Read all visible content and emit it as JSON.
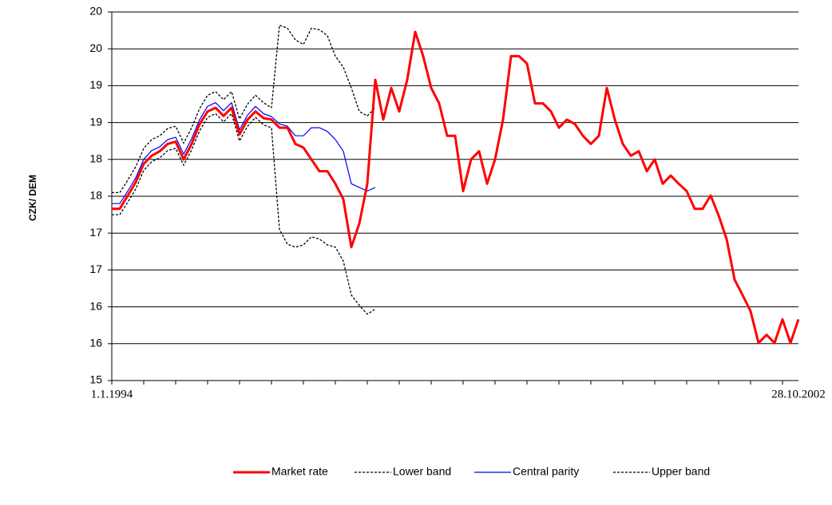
{
  "chart_data": {
    "type": "line",
    "y_label": "CZK/ DEM",
    "grid": true,
    "legend": "bottom",
    "categories": [
      "1.1.1994",
      null,
      null,
      null,
      null,
      null,
      null,
      null,
      null,
      null,
      null,
      null,
      null,
      null,
      null,
      null,
      null,
      null,
      null,
      null,
      null,
      null,
      null,
      null,
      null,
      null,
      null,
      null,
      null,
      null,
      null,
      null,
      null,
      null,
      null,
      null,
      null,
      null,
      null,
      null,
      null,
      null,
      null,
      null,
      null,
      null,
      null,
      null,
      null,
      null,
      null,
      null,
      null,
      null,
      null,
      null,
      null,
      null,
      null,
      null,
      null,
      null,
      null,
      null,
      null,
      null,
      null,
      null,
      null,
      null,
      null,
      null,
      null,
      null,
      null,
      null,
      null,
      null,
      null,
      null,
      null,
      null,
      null,
      null,
      null,
      null,
      "28.10.2002"
    ],
    "ylim": [
      15,
      20
    ],
    "yticks": [
      15,
      {
        "value": 15.5,
        "label": "16"
      },
      16,
      {
        "value": 16.5,
        "label": "17"
      },
      17,
      {
        "value": 17.5,
        "label": "18"
      },
      18,
      {
        "value": 18.5,
        "label": "19"
      },
      19,
      {
        "value": 19.5,
        "label": "20"
      },
      20
    ],
    "series": [
      {
        "name": "Market rate",
        "color": "#ff0000",
        "dashed": false,
        "values": [
          17.33,
          17.33,
          17.51,
          17.69,
          17.94,
          18.05,
          18.11,
          18.21,
          18.24,
          18.0,
          18.21,
          18.48,
          18.65,
          18.7,
          18.59,
          18.7,
          18.34,
          18.54,
          18.65,
          18.56,
          18.54,
          18.43,
          18.43,
          18.21,
          18.16,
          18.0,
          17.84,
          17.84,
          17.67,
          17.46,
          16.81,
          17.13,
          17.67,
          19.08,
          18.54,
          18.97,
          18.65,
          19.08,
          19.73,
          19.4,
          18.97,
          18.76,
          18.32,
          18.32,
          17.57,
          18.0,
          18.11,
          17.67,
          18.0,
          18.54,
          19.4,
          19.4,
          19.3,
          18.76,
          18.76,
          18.65,
          18.43,
          18.54,
          18.48,
          18.32,
          18.21,
          18.32,
          18.97,
          18.54,
          18.21,
          18.05,
          18.11,
          17.84,
          18.0,
          17.67,
          17.78,
          17.67,
          17.57,
          17.33,
          17.33,
          17.51,
          17.24,
          16.92,
          16.37,
          16.16,
          15.94,
          15.51,
          15.62,
          15.51,
          15.83,
          15.51,
          15.83
        ]
      },
      {
        "name": "Lower band",
        "color": "#000000",
        "dashed": true,
        "values": [
          17.25,
          17.25,
          17.42,
          17.6,
          17.85,
          17.97,
          18.02,
          18.12,
          18.15,
          17.92,
          18.13,
          18.39,
          18.57,
          18.62,
          18.51,
          18.62,
          18.25,
          18.45,
          18.57,
          18.47,
          18.43,
          17.05,
          16.85,
          16.81,
          16.84,
          16.95,
          16.92,
          16.84,
          16.81,
          16.62,
          16.16,
          16.02,
          15.9,
          15.97,
          null,
          null,
          null,
          null,
          null,
          null,
          null,
          null,
          null,
          null,
          null,
          null,
          null,
          null,
          null,
          null,
          null,
          null,
          null,
          null,
          null,
          null,
          null,
          null,
          null,
          null,
          null,
          null,
          null,
          null,
          null,
          null,
          null,
          null,
          null,
          null,
          null,
          null,
          null,
          null,
          null,
          null,
          null,
          null,
          null,
          null,
          null,
          null,
          null,
          null,
          null,
          null,
          null
        ]
      },
      {
        "name": "Central parity",
        "color": "#0000ff",
        "dashed": false,
        "values": [
          17.4,
          17.4,
          17.57,
          17.75,
          18.0,
          18.12,
          18.17,
          18.27,
          18.3,
          18.07,
          18.28,
          18.54,
          18.72,
          18.77,
          18.66,
          18.77,
          18.4,
          18.6,
          18.72,
          18.62,
          18.58,
          18.48,
          18.45,
          18.32,
          18.32,
          18.43,
          18.43,
          18.38,
          18.27,
          18.11,
          17.67,
          17.62,
          17.57,
          17.62,
          null,
          null,
          null,
          null,
          null,
          null,
          null,
          null,
          null,
          null,
          null,
          null,
          null,
          null,
          null,
          null,
          null,
          null,
          null,
          null,
          null,
          null,
          null,
          null,
          null,
          null,
          null,
          null,
          null,
          null,
          null,
          null,
          null,
          null,
          null,
          null,
          null,
          null,
          null,
          null,
          null,
          null,
          null,
          null,
          null,
          null,
          null,
          null,
          null,
          null,
          null,
          null,
          null
        ]
      },
      {
        "name": "Upper band",
        "color": "#000000",
        "dashed": true,
        "values": [
          17.55,
          17.55,
          17.72,
          17.9,
          18.15,
          18.27,
          18.32,
          18.42,
          18.45,
          18.22,
          18.43,
          18.69,
          18.87,
          18.92,
          18.81,
          18.92,
          18.55,
          18.75,
          18.87,
          18.77,
          18.7,
          19.82,
          19.78,
          19.62,
          19.56,
          19.78,
          19.76,
          19.68,
          19.4,
          19.25,
          18.97,
          18.65,
          18.59,
          18.7,
          null,
          null,
          null,
          null,
          null,
          null,
          null,
          null,
          null,
          null,
          null,
          null,
          null,
          null,
          null,
          null,
          null,
          null,
          null,
          null,
          null,
          null,
          null,
          null,
          null,
          null,
          null,
          null,
          null,
          null,
          null,
          null,
          null,
          null,
          null,
          null,
          null,
          null,
          null,
          null,
          null,
          null,
          null,
          null,
          null,
          null,
          null,
          null,
          null,
          null,
          null,
          null,
          null
        ]
      }
    ]
  }
}
